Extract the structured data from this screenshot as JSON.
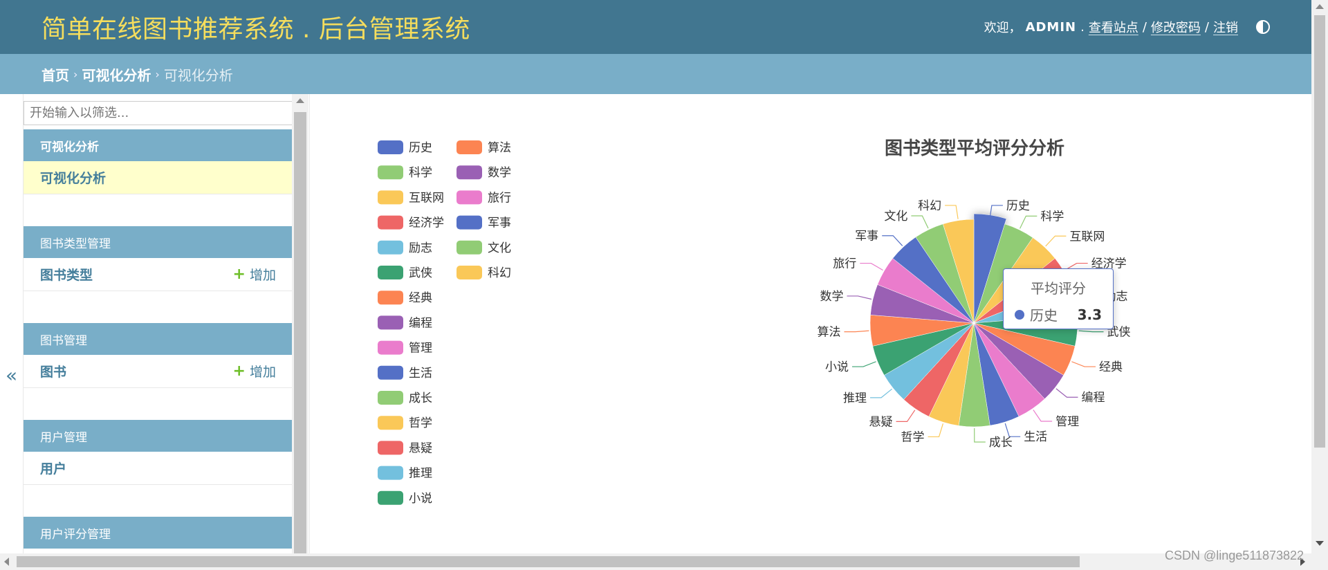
{
  "header": {
    "brand": "简单在线图书推荐系统 . 后台管理系统",
    "welcome": "欢迎，",
    "username": "ADMIN",
    "view_site": "查看站点",
    "change_password": "修改密码",
    "logout": "注销",
    "separator": "/"
  },
  "breadcrumbs": {
    "home": "首页",
    "section": "可视化分析",
    "current": "可视化分析",
    "arrow": "›"
  },
  "sidebar": {
    "filter_placeholder": "开始输入以筛选...",
    "collapse_glyph": "«",
    "add_label": "增加",
    "modules": [
      {
        "caption": "可视化分析",
        "items": [
          {
            "name": "可视化分析",
            "add": false
          }
        ]
      },
      {
        "caption": "图书类型管理",
        "items": [
          {
            "name": "图书类型",
            "add": true
          }
        ]
      },
      {
        "caption": "图书管理",
        "items": [
          {
            "name": "图书",
            "add": true
          }
        ]
      },
      {
        "caption": "用户管理",
        "items": [
          {
            "name": "用户",
            "add": false
          }
        ]
      },
      {
        "caption": "用户评分管理",
        "items": []
      }
    ]
  },
  "tooltip": {
    "title": "平均评分",
    "series": "历史",
    "value": "3.3"
  },
  "watermark": "CSDN @linge511873822",
  "chart_data": {
    "type": "pie",
    "title": "图书类型平均评分分析",
    "series_name": "平均评分",
    "legend_position": "top-left",
    "highlighted": "历史",
    "colors": [
      "#5470c6",
      "#91cc75",
      "#fac858",
      "#ee6666",
      "#73c0de",
      "#3ba272",
      "#fc8452",
      "#9a60b4",
      "#ea7ccc"
    ],
    "slices": [
      {
        "name": "历史",
        "value": 3.3
      },
      {
        "name": "科学",
        "value": 3.3
      },
      {
        "name": "互联网",
        "value": 3.2
      },
      {
        "name": "经济学",
        "value": 3.2
      },
      {
        "name": "励志",
        "value": 3.3
      },
      {
        "name": "武侠",
        "value": 3.3
      },
      {
        "name": "经典",
        "value": 3.3
      },
      {
        "name": "编程",
        "value": 3.2
      },
      {
        "name": "管理",
        "value": 3.3
      },
      {
        "name": "生活",
        "value": 3.2
      },
      {
        "name": "成长",
        "value": 3.3
      },
      {
        "name": "哲学",
        "value": 3.3
      },
      {
        "name": "悬疑",
        "value": 3.2
      },
      {
        "name": "推理",
        "value": 3.3
      },
      {
        "name": "小说",
        "value": 3.3
      },
      {
        "name": "算法",
        "value": 3.3
      },
      {
        "name": "数学",
        "value": 3.3
      },
      {
        "name": "旅行",
        "value": 3.2
      },
      {
        "name": "军事",
        "value": 3.3
      },
      {
        "name": "文化",
        "value": 3.2
      },
      {
        "name": "科幻",
        "value": 3.3
      }
    ]
  }
}
